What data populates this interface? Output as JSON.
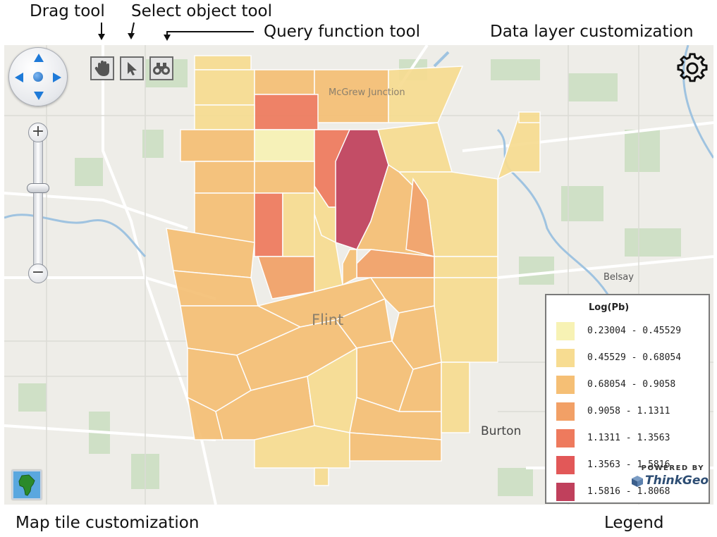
{
  "annotations": {
    "drag_tool": "Drag tool",
    "select_tool": "Select object tool",
    "query_tool": "Query function tool",
    "data_layer": "Data layer customization",
    "map_tile": "Map tile customization",
    "legend": "Legend"
  },
  "map": {
    "places": {
      "flint": "Flint",
      "mcgrew": "McGrew Junction",
      "belsay": "Belsay",
      "burton": "Burton"
    },
    "toolbar": {
      "drag_icon": "hand-icon",
      "select_icon": "cursor-icon",
      "query_icon": "binoculars-icon"
    },
    "zoom": {
      "plus": "+",
      "minus": "−"
    },
    "settings_icon": "gear-icon",
    "map_tile_icon": "africa-map-icon"
  },
  "legend": {
    "title": "Log(Pb)",
    "items": [
      {
        "label": "0.23004 - 0.45529",
        "color": "#f7f2b4"
      },
      {
        "label": "0.45529 - 0.68054",
        "color": "#f7dc91"
      },
      {
        "label": "0.68054 - 0.9058",
        "color": "#f5bf75"
      },
      {
        "label": "0.9058 - 1.1311",
        "color": "#f2a066"
      },
      {
        "label": "1.1311 - 1.3563",
        "color": "#ee7a5d"
      },
      {
        "label": "1.3563 - 1.5816",
        "color": "#e25858"
      },
      {
        "label": "1.5816 - 1.8068",
        "color": "#c0405c"
      }
    ]
  },
  "branding": {
    "powered_by": "POWERED BY",
    "name": "ThinkGeo"
  }
}
